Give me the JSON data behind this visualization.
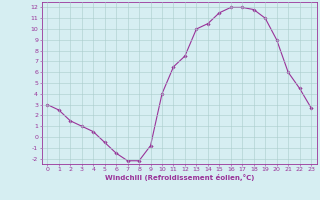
{
  "x": [
    0,
    1,
    2,
    3,
    4,
    5,
    6,
    7,
    8,
    9,
    10,
    11,
    12,
    13,
    14,
    15,
    16,
    17,
    18,
    19,
    20,
    21,
    22,
    23
  ],
  "y": [
    3,
    2.5,
    1.5,
    1.0,
    0.5,
    -0.5,
    -1.5,
    -2.2,
    -2.2,
    -0.8,
    4.0,
    6.5,
    7.5,
    10.0,
    10.5,
    11.5,
    12.0,
    12.0,
    11.8,
    11.0,
    9.0,
    6.0,
    4.5,
    2.7
  ],
  "line_color": "#993399",
  "marker": "D",
  "marker_size": 1.8,
  "bg_color": "#d6eef2",
  "grid_color": "#aacccc",
  "axis_color": "#993399",
  "xlabel": "Windchill (Refroidissement éolien,°C)",
  "xlabel_fontsize": 5.0,
  "xlim": [
    -0.5,
    23.5
  ],
  "ylim": [
    -2.5,
    12.5
  ],
  "yticks": [
    -2,
    -1,
    0,
    1,
    2,
    3,
    4,
    5,
    6,
    7,
    8,
    9,
    10,
    11,
    12
  ],
  "xticks": [
    0,
    1,
    2,
    3,
    4,
    5,
    6,
    7,
    8,
    9,
    10,
    11,
    12,
    13,
    14,
    15,
    16,
    17,
    18,
    19,
    20,
    21,
    22,
    23
  ],
  "tick_fontsize": 4.5,
  "figsize": [
    3.2,
    2.0
  ],
  "dpi": 100
}
